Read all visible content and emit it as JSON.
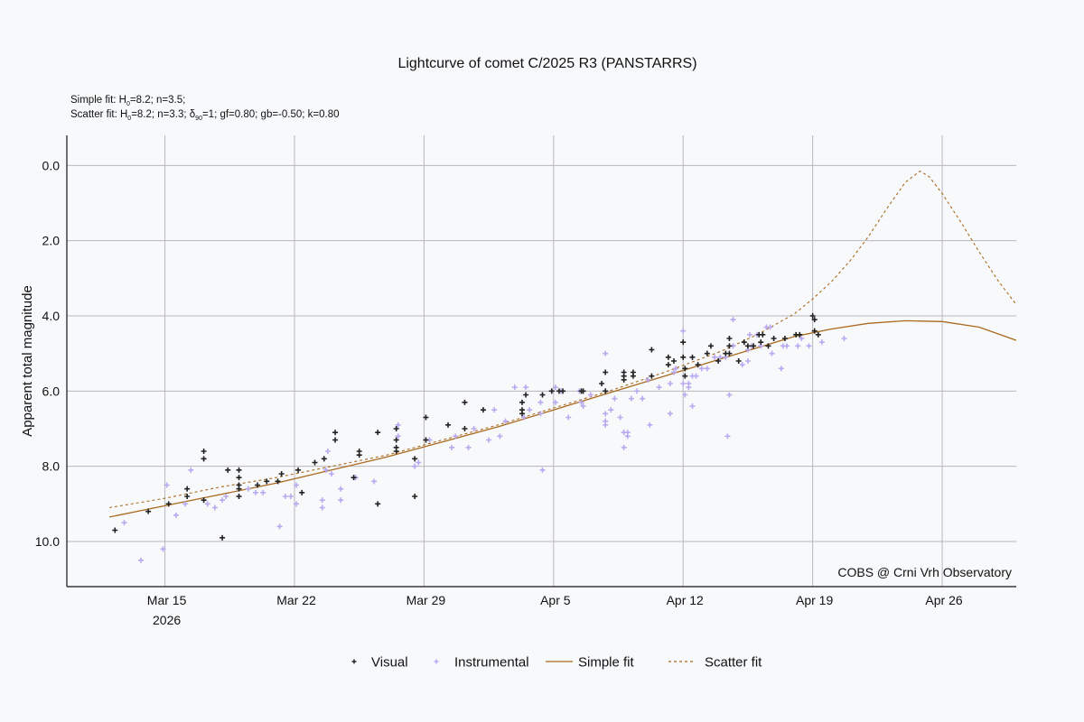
{
  "chart_data": {
    "type": "scatter",
    "title": "Lightcurve of comet C/2025 R3 (PANSTARRS)",
    "subtitle_lines": [
      {
        "parts": [
          "Simple fit: H",
          "0",
          "=8.2; n=3.5;"
        ]
      },
      {
        "parts": [
          "Scatter fit: H",
          "0",
          "=8.2; n=3.3; δ",
          "90",
          "=1; gf=0.80; gb=-0.50; k=0.80"
        ]
      }
    ],
    "xlabel": "",
    "ylabel": "Apparent total magnitude",
    "x_unit": "days since 2026-03-15",
    "xlim": [
      -5.3,
      46.0
    ],
    "ylim": [
      11.2,
      -0.8
    ],
    "y_inverted": true,
    "grid": true,
    "x_ticks": [
      {
        "value": 0,
        "label": "Mar 15",
        "sublabel": "2026"
      },
      {
        "value": 7,
        "label": "Mar 22",
        "sublabel": ""
      },
      {
        "value": 14,
        "label": "Mar 29",
        "sublabel": ""
      },
      {
        "value": 21,
        "label": "Apr 5",
        "sublabel": ""
      },
      {
        "value": 28,
        "label": "Apr 12",
        "sublabel": ""
      },
      {
        "value": 35,
        "label": "Apr 19",
        "sublabel": ""
      },
      {
        "value": 42,
        "label": "Apr 26",
        "sublabel": ""
      }
    ],
    "y_ticks": [
      {
        "value": 0,
        "label": "0.0"
      },
      {
        "value": 2,
        "label": "2.0"
      },
      {
        "value": 4,
        "label": "4.0"
      },
      {
        "value": 6,
        "label": "6.0"
      },
      {
        "value": 8,
        "label": "8.0"
      },
      {
        "value": 10,
        "label": "10.0"
      }
    ],
    "annotation": "COBS @ Crni Vrh Observatory",
    "legend_position": "bottom-center",
    "series": [
      {
        "name": "Visual",
        "kind": "points",
        "color": "#222222",
        "points": [
          [
            -2.7,
            9.7
          ],
          [
            -0.9,
            9.2
          ],
          [
            0.2,
            9.0
          ],
          [
            1.2,
            8.8
          ],
          [
            1.2,
            8.6
          ],
          [
            2.1,
            8.9
          ],
          [
            2.1,
            7.8
          ],
          [
            2.1,
            7.6
          ],
          [
            3.1,
            9.9
          ],
          [
            3.4,
            8.1
          ],
          [
            4.0,
            8.8
          ],
          [
            4.0,
            8.6
          ],
          [
            4.0,
            8.5
          ],
          [
            4.0,
            8.3
          ],
          [
            4.0,
            8.1
          ],
          [
            5.0,
            8.5
          ],
          [
            5.5,
            8.4
          ],
          [
            6.1,
            8.4
          ],
          [
            6.3,
            8.2
          ],
          [
            7.4,
            8.7
          ],
          [
            7.2,
            8.1
          ],
          [
            8.1,
            7.9
          ],
          [
            8.6,
            7.8
          ],
          [
            9.2,
            7.3
          ],
          [
            9.2,
            7.1
          ],
          [
            10.2,
            8.3
          ],
          [
            10.5,
            7.6
          ],
          [
            10.5,
            7.7
          ],
          [
            11.5,
            9.0
          ],
          [
            11.5,
            7.1
          ],
          [
            12.5,
            7.6
          ],
          [
            12.5,
            7.5
          ],
          [
            12.5,
            7.3
          ],
          [
            12.5,
            7.0
          ],
          [
            13.5,
            7.8
          ],
          [
            13.5,
            8.8
          ],
          [
            14.1,
            7.3
          ],
          [
            14.1,
            6.7
          ],
          [
            15.3,
            6.9
          ],
          [
            16.2,
            7.0
          ],
          [
            16.2,
            6.3
          ],
          [
            17.2,
            6.5
          ],
          [
            19.3,
            6.6
          ],
          [
            19.3,
            6.5
          ],
          [
            19.3,
            6.3
          ],
          [
            19.5,
            6.1
          ],
          [
            20.4,
            6.1
          ],
          [
            20.9,
            6.0
          ],
          [
            21.3,
            6.0
          ],
          [
            21.5,
            6.0
          ],
          [
            22.5,
            6.0
          ],
          [
            22.6,
            6.0
          ],
          [
            23.6,
            5.8
          ],
          [
            23.8,
            5.5
          ],
          [
            23.8,
            6.0
          ],
          [
            24.8,
            5.5
          ],
          [
            24.8,
            5.6
          ],
          [
            24.8,
            5.7
          ],
          [
            25.3,
            5.6
          ],
          [
            25.3,
            5.5
          ],
          [
            26.3,
            5.6
          ],
          [
            26.3,
            4.9
          ],
          [
            27.2,
            5.1
          ],
          [
            27.2,
            5.3
          ],
          [
            27.5,
            5.2
          ],
          [
            28.0,
            4.7
          ],
          [
            28.0,
            5.1
          ],
          [
            28.1,
            5.4
          ],
          [
            28.1,
            5.6
          ],
          [
            28.5,
            5.1
          ],
          [
            28.8,
            5.3
          ],
          [
            29.3,
            5.0
          ],
          [
            29.5,
            4.8
          ],
          [
            29.9,
            5.2
          ],
          [
            30.3,
            5.0
          ],
          [
            30.5,
            4.6
          ],
          [
            30.5,
            4.8
          ],
          [
            30.5,
            5.0
          ],
          [
            31.0,
            5.2
          ],
          [
            31.3,
            4.7
          ],
          [
            31.5,
            4.8
          ],
          [
            31.8,
            4.8
          ],
          [
            32.1,
            4.5
          ],
          [
            32.2,
            4.7
          ],
          [
            32.3,
            4.5
          ],
          [
            32.6,
            4.8
          ],
          [
            32.9,
            4.6
          ],
          [
            33.5,
            4.6
          ],
          [
            34.1,
            4.5
          ],
          [
            34.3,
            4.5
          ],
          [
            35.0,
            4.0
          ],
          [
            35.1,
            4.1
          ],
          [
            35.1,
            4.4
          ],
          [
            35.3,
            4.5
          ]
        ]
      },
      {
        "name": "Instrumental",
        "kind": "points",
        "color": "#b9a9f0",
        "points": [
          [
            -2.2,
            9.5
          ],
          [
            -1.3,
            10.5
          ],
          [
            -0.1,
            10.2
          ],
          [
            0.1,
            8.5
          ],
          [
            0.6,
            9.3
          ],
          [
            1.1,
            9.0
          ],
          [
            1.4,
            8.1
          ],
          [
            2.3,
            9.0
          ],
          [
            2.7,
            9.1
          ],
          [
            3.1,
            8.9
          ],
          [
            3.3,
            8.8
          ],
          [
            4.0,
            8.8
          ],
          [
            4.5,
            8.6
          ],
          [
            4.9,
            8.7
          ],
          [
            5.3,
            8.7
          ],
          [
            6.2,
            9.6
          ],
          [
            6.5,
            8.8
          ],
          [
            6.8,
            8.8
          ],
          [
            7.1,
            9.0
          ],
          [
            7.1,
            8.5
          ],
          [
            8.5,
            9.1
          ],
          [
            8.5,
            8.9
          ],
          [
            8.7,
            8.1
          ],
          [
            8.8,
            7.6
          ],
          [
            9.0,
            8.2
          ],
          [
            9.5,
            8.9
          ],
          [
            9.5,
            8.6
          ],
          [
            10.3,
            8.3
          ],
          [
            10.3,
            8.3
          ],
          [
            11.3,
            8.4
          ],
          [
            12.6,
            7.2
          ],
          [
            12.6,
            6.9
          ],
          [
            13.5,
            8.0
          ],
          [
            13.7,
            7.9
          ],
          [
            14.3,
            7.3
          ],
          [
            15.5,
            7.5
          ],
          [
            15.7,
            7.2
          ],
          [
            16.4,
            7.5
          ],
          [
            16.7,
            7.0
          ],
          [
            17.5,
            7.3
          ],
          [
            17.8,
            6.5
          ],
          [
            18.1,
            7.2
          ],
          [
            18.4,
            6.8
          ],
          [
            18.9,
            5.9
          ],
          [
            19.4,
            6.7
          ],
          [
            19.5,
            5.9
          ],
          [
            19.7,
            6.5
          ],
          [
            20.3,
            6.3
          ],
          [
            20.3,
            6.6
          ],
          [
            20.4,
            8.1
          ],
          [
            21.1,
            6.3
          ],
          [
            21.1,
            5.9
          ],
          [
            21.4,
            6.0
          ],
          [
            21.8,
            6.7
          ],
          [
            22.4,
            6.0
          ],
          [
            22.5,
            6.3
          ],
          [
            22.6,
            6.4
          ],
          [
            23.0,
            6.1
          ],
          [
            23.8,
            5.0
          ],
          [
            23.8,
            6.6
          ],
          [
            23.8,
            6.8
          ],
          [
            23.8,
            6.9
          ],
          [
            24.1,
            6.5
          ],
          [
            24.3,
            6.2
          ],
          [
            24.6,
            6.7
          ],
          [
            24.8,
            7.1
          ],
          [
            24.8,
            7.5
          ],
          [
            25.0,
            7.1
          ],
          [
            25.0,
            7.2
          ],
          [
            25.2,
            6.2
          ],
          [
            25.5,
            6.0
          ],
          [
            25.8,
            6.2
          ],
          [
            26.1,
            5.7
          ],
          [
            26.2,
            6.9
          ],
          [
            26.7,
            5.9
          ],
          [
            27.3,
            6.6
          ],
          [
            27.5,
            5.5
          ],
          [
            27.6,
            5.4
          ],
          [
            28.0,
            4.4
          ],
          [
            28.0,
            5.8
          ],
          [
            28.1,
            6.1
          ],
          [
            28.3,
            5.9
          ],
          [
            28.3,
            5.8
          ],
          [
            28.5,
            5.6
          ],
          [
            28.5,
            6.4
          ],
          [
            28.7,
            5.6
          ],
          [
            29.3,
            5.4
          ],
          [
            29.7,
            5.1
          ],
          [
            30.0,
            5.1
          ],
          [
            30.3,
            5.1
          ],
          [
            30.7,
            4.1
          ],
          [
            30.7,
            4.8
          ],
          [
            31.2,
            5.3
          ],
          [
            31.5,
            4.9
          ],
          [
            31.5,
            5.2
          ],
          [
            32.2,
            4.8
          ],
          [
            32.5,
            4.3
          ],
          [
            32.7,
            4.3
          ],
          [
            32.8,
            5.0
          ],
          [
            33.3,
            5.4
          ],
          [
            33.4,
            4.8
          ],
          [
            33.6,
            4.8
          ],
          [
            34.2,
            4.8
          ],
          [
            34.4,
            4.6
          ],
          [
            35.5,
            4.7
          ],
          [
            36.7,
            4.6
          ],
          [
            32.0,
            4.5
          ],
          [
            30.5,
            6.1
          ],
          [
            30.4,
            7.2
          ],
          [
            31.6,
            4.5
          ],
          [
            31.7,
            4.8
          ],
          [
            27.3,
            5.8
          ],
          [
            29.0,
            5.4
          ],
          [
            34.8,
            4.8
          ]
        ]
      },
      {
        "name": "Simple fit",
        "kind": "line",
        "color": "#a96a1e",
        "dash": "solid",
        "points": [
          [
            -3,
            9.35
          ],
          [
            0,
            9.05
          ],
          [
            3,
            8.75
          ],
          [
            6,
            8.45
          ],
          [
            9,
            8.1
          ],
          [
            12,
            7.75
          ],
          [
            15,
            7.35
          ],
          [
            18,
            6.95
          ],
          [
            21,
            6.5
          ],
          [
            24,
            6.05
          ],
          [
            27,
            5.6
          ],
          [
            30,
            5.15
          ],
          [
            32,
            4.85
          ],
          [
            34,
            4.55
          ],
          [
            36,
            4.35
          ],
          [
            38,
            4.2
          ],
          [
            40,
            4.13
          ],
          [
            42,
            4.15
          ],
          [
            44,
            4.3
          ],
          [
            46,
            4.65
          ]
        ]
      },
      {
        "name": "Scatter fit",
        "kind": "line",
        "color": "#a96a1e",
        "dash": "dashed",
        "points": [
          [
            -3,
            9.1
          ],
          [
            0,
            8.85
          ],
          [
            3,
            8.55
          ],
          [
            6,
            8.3
          ],
          [
            9,
            8.0
          ],
          [
            12,
            7.7
          ],
          [
            15,
            7.3
          ],
          [
            18,
            6.9
          ],
          [
            21,
            6.45
          ],
          [
            24,
            6.0
          ],
          [
            27,
            5.5
          ],
          [
            30,
            4.95
          ],
          [
            32,
            4.5
          ],
          [
            34,
            3.95
          ],
          [
            35,
            3.55
          ],
          [
            36,
            3.1
          ],
          [
            37,
            2.55
          ],
          [
            38,
            1.9
          ],
          [
            39,
            1.15
          ],
          [
            40,
            0.45
          ],
          [
            40.8,
            0.15
          ],
          [
            41.3,
            0.3
          ],
          [
            42,
            0.75
          ],
          [
            43,
            1.5
          ],
          [
            44,
            2.3
          ],
          [
            45,
            3.05
          ],
          [
            46,
            3.7
          ]
        ]
      }
    ]
  },
  "legend": {
    "items": [
      {
        "label": "Visual"
      },
      {
        "label": "Instrumental"
      },
      {
        "label": "Simple fit"
      },
      {
        "label": "Scatter fit"
      }
    ]
  }
}
